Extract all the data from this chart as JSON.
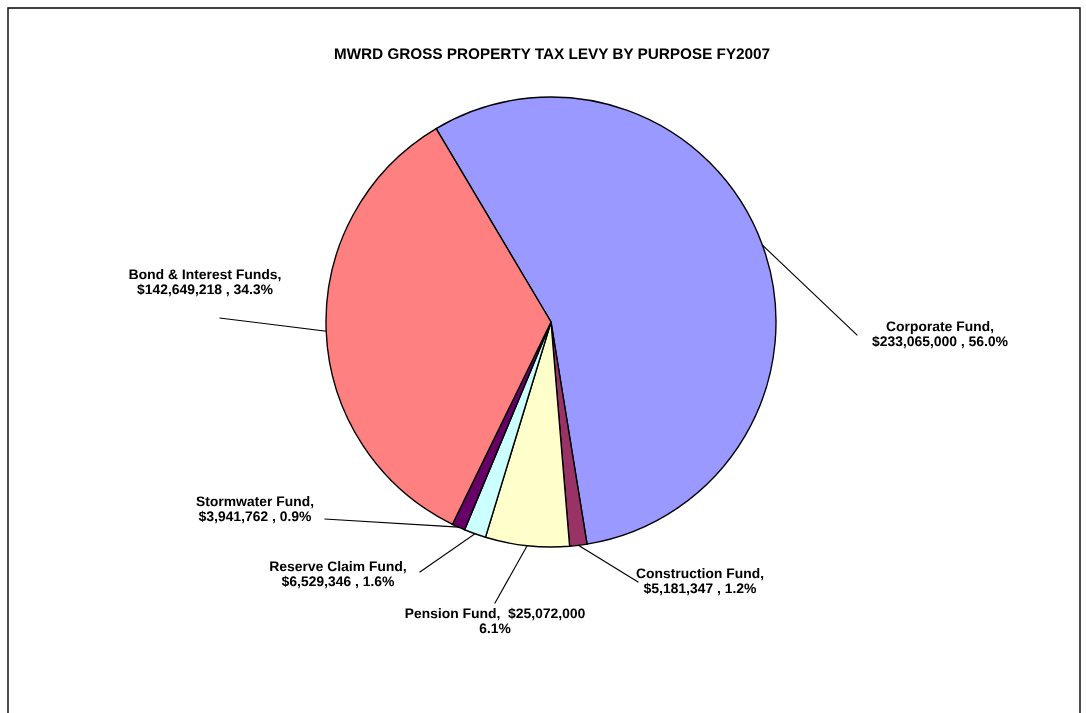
{
  "chart_data": {
    "type": "pie",
    "title": "MWRD GROSS PROPERTY TAX LEVY BY PURPOSE FY2007",
    "categories": [
      "Corporate Fund",
      "Construction Fund",
      "Pension Fund",
      "Reserve Claim Fund",
      "Stormwater Fund",
      "Bond & Interest Funds"
    ],
    "values": [
      233065000,
      5181347,
      25072000,
      6529346,
      3941762,
      142649218
    ],
    "colors": [
      "#9999ff",
      "#993366",
      "#ffffcc",
      "#ccffff",
      "#660066",
      "#ff8080"
    ],
    "value_labels": [
      ",\n$233,065,000 , 56.0%",
      ",\n$5,181,347 , 1.2%",
      ",  $25,072,000\n6.1%",
      ",\n$6,529,346 , 1.6%",
      ",\n$3,941,762 , 0.9%",
      ",\n$142,649,218 , 34.3%"
    ]
  }
}
